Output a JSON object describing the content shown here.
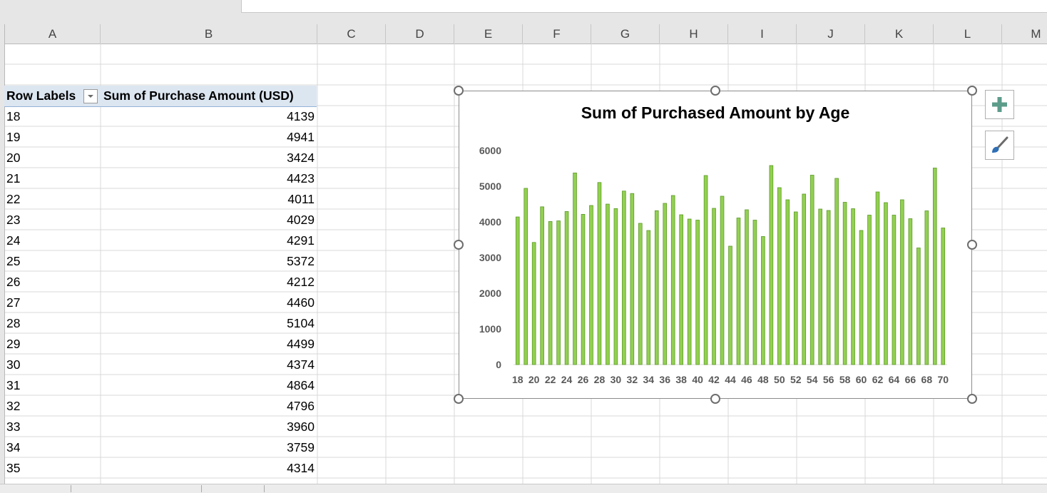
{
  "columns": [
    "A",
    "B",
    "C",
    "D",
    "E",
    "F",
    "G",
    "H",
    "I",
    "J",
    "K",
    "L",
    "M"
  ],
  "pivot": {
    "row_labels_header": "Row Labels",
    "sum_header": "Sum of Purchase Amount (USD)",
    "rows": [
      {
        "age": "18",
        "value": "4139"
      },
      {
        "age": "19",
        "value": "4941"
      },
      {
        "age": "20",
        "value": "3424"
      },
      {
        "age": "21",
        "value": "4423"
      },
      {
        "age": "22",
        "value": "4011"
      },
      {
        "age": "23",
        "value": "4029"
      },
      {
        "age": "24",
        "value": "4291"
      },
      {
        "age": "25",
        "value": "5372"
      },
      {
        "age": "26",
        "value": "4212"
      },
      {
        "age": "27",
        "value": "4460"
      },
      {
        "age": "28",
        "value": "5104"
      },
      {
        "age": "29",
        "value": "4499"
      },
      {
        "age": "30",
        "value": "4374"
      },
      {
        "age": "31",
        "value": "4864"
      },
      {
        "age": "32",
        "value": "4796"
      },
      {
        "age": "33",
        "value": "3960"
      },
      {
        "age": "34",
        "value": "3759"
      },
      {
        "age": "35",
        "value": "4314"
      }
    ]
  },
  "chart_data": {
    "type": "bar",
    "title": "Sum of Purchased Amount by Age",
    "xlabel": "",
    "ylabel": "",
    "ylim": [
      0,
      6000
    ],
    "yticks": [
      0,
      1000,
      2000,
      3000,
      4000,
      5000,
      6000
    ],
    "grid": false,
    "bar_color": "#92d050",
    "bar_edge_color": "#5e9a2a",
    "categories": [
      18,
      19,
      20,
      21,
      22,
      23,
      24,
      25,
      26,
      27,
      28,
      29,
      30,
      31,
      32,
      33,
      34,
      35,
      36,
      37,
      38,
      39,
      40,
      41,
      42,
      43,
      44,
      45,
      46,
      47,
      48,
      49,
      50,
      51,
      52,
      53,
      54,
      55,
      56,
      57,
      58,
      59,
      60,
      61,
      62,
      63,
      64,
      65,
      66,
      67,
      68,
      69,
      70
    ],
    "x_tick_labels": [
      "18",
      "20",
      "22",
      "24",
      "26",
      "28",
      "30",
      "32",
      "34",
      "36",
      "38",
      "40",
      "42",
      "44",
      "46",
      "48",
      "50",
      "52",
      "54",
      "56",
      "58",
      "60",
      "62",
      "64",
      "66",
      "68",
      "70"
    ],
    "values": [
      4139,
      4941,
      3424,
      4423,
      4011,
      4029,
      4291,
      5372,
      4212,
      4460,
      5104,
      4499,
      4374,
      4864,
      4796,
      3960,
      3759,
      4314,
      4520,
      4740,
      4200,
      4080,
      4050,
      5300,
      4380,
      4720,
      3320,
      4110,
      4340,
      4050,
      3590,
      5580,
      4960,
      4620,
      4280,
      4780,
      5310,
      4360,
      4320,
      5220,
      4550,
      4370,
      3760,
      4190,
      4840,
      4540,
      4190,
      4620,
      4090,
      3270,
      4310,
      5510,
      3830
    ]
  },
  "icons": {
    "chart_elements": "plus-icon",
    "chart_styles": "brush-icon",
    "filter": "dropdown-arrow-icon"
  }
}
